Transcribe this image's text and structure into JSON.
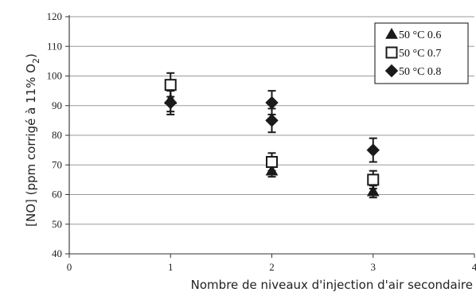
{
  "chart_data": {
    "type": "scatter",
    "title": "",
    "xlabel": "Nombre de niveaux d'injection d'air secondaire",
    "ylabel_main": "[NO] (ppm corrigé à 11% O",
    "ylabel_sub": "2",
    "ylabel_close": ")",
    "xlim": [
      0,
      4
    ],
    "ylim": [
      40,
      120
    ],
    "xticks": [
      "0",
      "1",
      "2",
      "3",
      "4"
    ],
    "yticks": [
      "40",
      "50",
      "60",
      "70",
      "80",
      "90",
      "100",
      "110",
      "120"
    ],
    "grid": "horizontal",
    "legend_position": "top-right",
    "series": [
      {
        "name": "50 °C 0.6",
        "marker": "triangle",
        "color": "#1a1a1a",
        "points": [
          {
            "x": 1,
            "y": 92,
            "err": 4
          },
          {
            "x": 2,
            "y": 68,
            "err": 2
          },
          {
            "x": 3,
            "y": 61,
            "err": 2
          }
        ]
      },
      {
        "name": "50 °C 0.7",
        "marker": "square-open",
        "color": "#1a1a1a",
        "points": [
          {
            "x": 1,
            "y": 97,
            "err": 4
          },
          {
            "x": 2,
            "y": 71,
            "err": 3
          },
          {
            "x": 3,
            "y": 65,
            "err": 3
          }
        ]
      },
      {
        "name": "50 °C 0.8",
        "marker": "diamond",
        "color": "#1a1a1a",
        "points": [
          {
            "x": 1,
            "y": 91,
            "err": 4
          },
          {
            "x": 2,
            "y": 91,
            "err": 4
          },
          {
            "x": 2,
            "y": 85,
            "err": 4
          },
          {
            "x": 3,
            "y": 75,
            "err": 4
          }
        ]
      }
    ]
  }
}
